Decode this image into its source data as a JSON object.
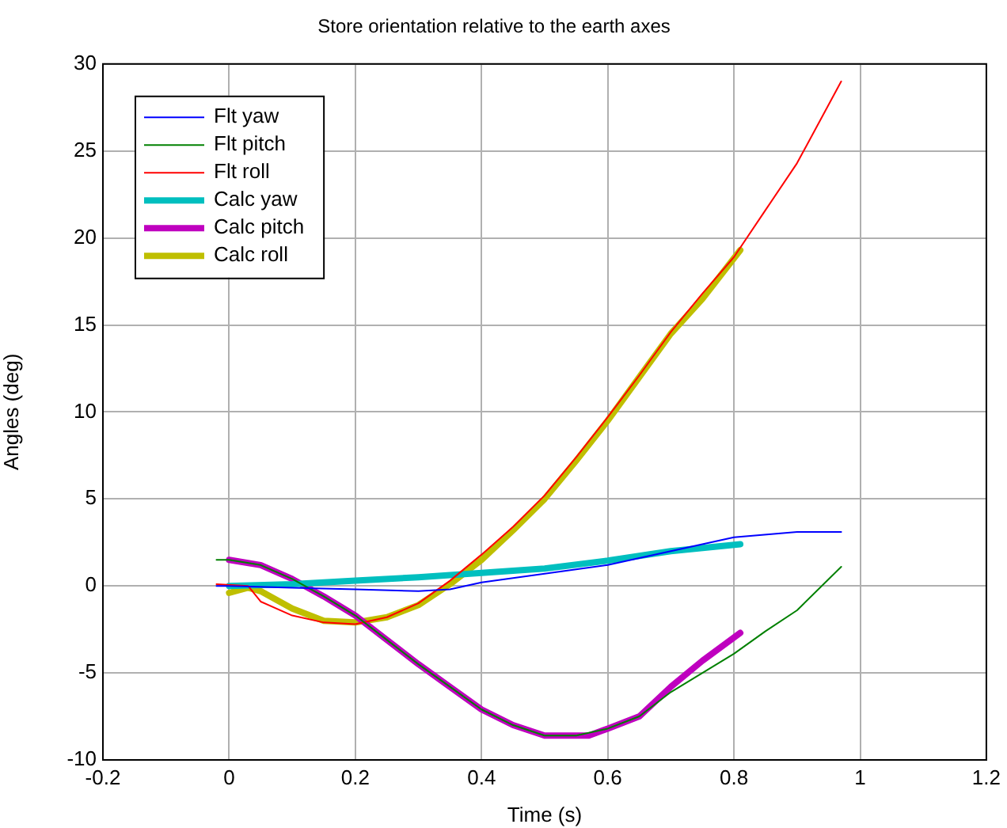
{
  "chart_data": {
    "type": "line",
    "title": "Store orientation relative to the earth axes",
    "xlabel": "Time (s)",
    "ylabel": "Angles (deg)",
    "xlim": [
      -0.2,
      1.2
    ],
    "xticks": [
      -0.2,
      0,
      0.2,
      0.4,
      0.6,
      0.8,
      1,
      1.2
    ],
    "ylim": [
      -10,
      30
    ],
    "yticks": [
      -10,
      -5,
      0,
      5,
      10,
      15,
      20,
      25,
      30
    ],
    "grid": true,
    "legend": "top left",
    "marker": "none",
    "line_style": "solid",
    "series": [
      {
        "name": "Flt yaw",
        "color": "#0000ff",
        "x": [
          -0.02,
          0,
          0.1,
          0.2,
          0.3,
          0.35,
          0.4,
          0.5,
          0.6,
          0.7,
          0.8,
          0.9,
          0.97
        ],
        "values": [
          0,
          0,
          -0.1,
          -0.2,
          -0.3,
          -0.2,
          0.2,
          0.7,
          1.2,
          2.0,
          2.8,
          3.1,
          3.1
        ]
      },
      {
        "name": "Flt pitch",
        "color": "#008000",
        "x": [
          -0.02,
          0,
          0.05,
          0.1,
          0.15,
          0.2,
          0.25,
          0.3,
          0.35,
          0.4,
          0.45,
          0.5,
          0.55,
          0.6,
          0.65,
          0.7,
          0.75,
          0.8,
          0.85,
          0.9,
          0.97
        ],
        "values": [
          1.5,
          1.5,
          1.2,
          0.4,
          -0.6,
          -1.7,
          -3.1,
          -4.5,
          -5.8,
          -7.1,
          -8.0,
          -8.6,
          -8.6,
          -8.2,
          -7.5,
          -6.1,
          -5.0,
          -3.9,
          -2.6,
          -1.4,
          1.1
        ]
      },
      {
        "name": "Flt roll",
        "color": "#ff0000",
        "x": [
          -0.02,
          0.03,
          0.05,
          0.1,
          0.15,
          0.2,
          0.25,
          0.3,
          0.35,
          0.4,
          0.45,
          0.5,
          0.55,
          0.6,
          0.65,
          0.7,
          0.75,
          0.8,
          0.85,
          0.9,
          0.97
        ],
        "values": [
          0.1,
          0,
          -0.9,
          -1.7,
          -2.1,
          -2.2,
          -1.8,
          -1.0,
          0.3,
          1.8,
          3.4,
          5.2,
          7.4,
          9.7,
          12.1,
          14.6,
          16.8,
          18.9,
          21.6,
          24.3,
          29
        ]
      },
      {
        "name": "Calc yaw",
        "color": "#00bfbf",
        "x": [
          0,
          0.1,
          0.2,
          0.3,
          0.4,
          0.5,
          0.6,
          0.7,
          0.81
        ],
        "values": [
          0,
          0.1,
          0.3,
          0.5,
          0.75,
          1.0,
          1.45,
          2.0,
          2.4
        ]
      },
      {
        "name": "Calc pitch",
        "color": "#bf00bf",
        "x": [
          0,
          0.05,
          0.1,
          0.15,
          0.2,
          0.25,
          0.3,
          0.35,
          0.4,
          0.45,
          0.5,
          0.55,
          0.57,
          0.6,
          0.65,
          0.7,
          0.75,
          0.81
        ],
        "values": [
          1.5,
          1.2,
          0.4,
          -0.6,
          -1.7,
          -3.1,
          -4.5,
          -5.8,
          -7.1,
          -8.0,
          -8.6,
          -8.6,
          -8.6,
          -8.2,
          -7.5,
          -5.8,
          -4.3,
          -2.7
        ]
      },
      {
        "name": "Calc roll",
        "color": "#bfbf00",
        "x": [
          0,
          0.03,
          0.05,
          0.1,
          0.15,
          0.2,
          0.25,
          0.3,
          0.35,
          0.4,
          0.45,
          0.5,
          0.55,
          0.6,
          0.65,
          0.7,
          0.75,
          0.81
        ],
        "values": [
          -0.4,
          -0.1,
          -0.3,
          -1.3,
          -2.0,
          -2.1,
          -1.8,
          -1.1,
          0.1,
          1.5,
          3.2,
          5.0,
          7.2,
          9.5,
          12.0,
          14.5,
          16.5,
          19.3
        ]
      }
    ]
  }
}
